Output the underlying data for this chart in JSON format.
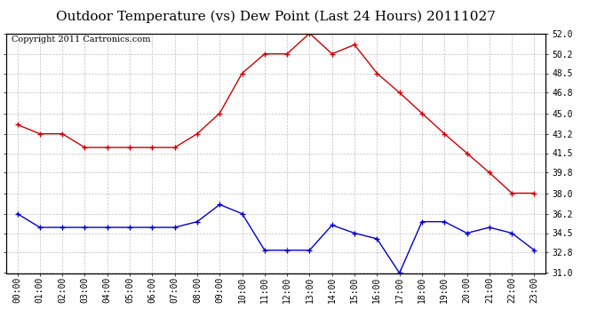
{
  "title": "Outdoor Temperature (vs) Dew Point (Last 24 Hours) 20111027",
  "copyright": "Copyright 2011 Cartronics.com",
  "x_labels": [
    "00:00",
    "01:00",
    "02:00",
    "03:00",
    "04:00",
    "05:00",
    "06:00",
    "07:00",
    "08:00",
    "09:00",
    "10:00",
    "11:00",
    "12:00",
    "13:00",
    "14:00",
    "15:00",
    "16:00",
    "17:00",
    "18:00",
    "19:00",
    "20:00",
    "21:00",
    "22:00",
    "23:00"
  ],
  "temp_red": [
    44.0,
    43.2,
    43.2,
    42.0,
    42.0,
    42.0,
    42.0,
    42.0,
    43.2,
    45.0,
    48.5,
    50.2,
    50.2,
    52.0,
    50.2,
    51.0,
    48.5,
    46.8,
    45.0,
    43.2,
    41.5,
    39.8,
    38.0,
    38.0
  ],
  "dew_blue": [
    36.2,
    35.0,
    35.0,
    35.0,
    35.0,
    35.0,
    35.0,
    35.0,
    35.5,
    37.0,
    36.2,
    33.0,
    33.0,
    33.0,
    35.2,
    34.5,
    34.0,
    31.0,
    35.5,
    35.5,
    34.5,
    35.0,
    34.5,
    33.0
  ],
  "ylim": [
    31.0,
    52.0
  ],
  "yticks": [
    31.0,
    32.8,
    34.5,
    36.2,
    38.0,
    39.8,
    41.5,
    43.2,
    45.0,
    46.8,
    48.5,
    50.2,
    52.0
  ],
  "red_color": "#cc0000",
  "blue_color": "#0000cc",
  "bg_color": "#ffffff",
  "plot_bg": "#ffffff",
  "grid_color": "#b0b0b0",
  "title_fontsize": 11,
  "copyright_fontsize": 7
}
